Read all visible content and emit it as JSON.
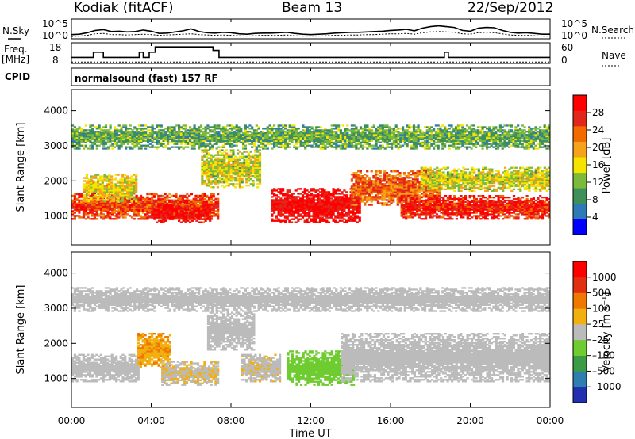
{
  "header": {
    "station": "Kodiak (fitACF)",
    "beam": "Beam 13",
    "date": "22/Sep/2012",
    "program": "normalsound (fast) 157 RF"
  },
  "side_labels": {
    "n_sky": "N.Sky",
    "freq": "Freq.",
    "freq_unit": "[MHz]",
    "cpid": "CPID",
    "n_search": "N.Search",
    "nave": "Nave"
  },
  "noise_panel": {
    "left_ticks": [
      "10^5",
      "10^0"
    ],
    "right_ticks": [
      "10^5",
      "10^0"
    ],
    "n_sky_log": [
      0.9,
      1.0,
      1.4,
      2.0,
      2.2,
      1.7,
      1.8,
      1.6,
      1.7,
      2.1,
      1.8,
      1.2,
      1.3,
      1.6,
      1.9,
      2.4,
      1.7,
      1.4,
      1.3,
      1.5,
      1.4,
      1.1,
      1.0,
      1.2,
      1.3,
      1.3,
      1.4,
      1.5,
      1.2,
      1.0,
      0.9,
      1.0,
      1.1,
      1.3,
      1.4,
      1.5,
      1.5,
      1.6,
      1.7,
      1.8,
      2.0,
      2.1,
      2.3,
      1.9,
      2.6,
      3.0,
      3.2,
      3.0,
      2.8,
      2.0,
      1.8,
      2.6,
      2.8,
      2.7,
      2.0,
      1.5,
      1.3,
      1.4,
      1.2,
      1.0,
      1.0
    ],
    "n_search_log": [
      0.4,
      0.5,
      0.7,
      1.1,
      1.2,
      0.9,
      0.9,
      0.8,
      0.9,
      1.0,
      0.9,
      0.7,
      0.8,
      0.9,
      1.0,
      1.1,
      0.9,
      0.8,
      0.7,
      0.8,
      0.7,
      0.6,
      0.5,
      0.6,
      0.7,
      0.7,
      0.7,
      0.8,
      0.6,
      0.5,
      0.5,
      0.5,
      0.6,
      0.7,
      0.7,
      0.8,
      0.8,
      0.9,
      0.9,
      1.0,
      1.1,
      1.1,
      1.2,
      1.0,
      1.4,
      1.6,
      1.7,
      1.6,
      1.5,
      1.1,
      1.0,
      1.4,
      1.5,
      1.4,
      1.1,
      0.8,
      0.7,
      0.7,
      0.6,
      0.5,
      0.5
    ]
  },
  "freq_panel": {
    "left_ticks": [
      "18",
      "8"
    ],
    "right_ticks": [
      "60",
      "0"
    ],
    "freq_steps": [
      {
        "t": 0.0,
        "f": 11
      },
      {
        "t": 0.9,
        "f": 11
      },
      {
        "t": 1.1,
        "f": 14
      },
      {
        "t": 1.6,
        "f": 11
      },
      {
        "t": 3.4,
        "f": 14
      },
      {
        "t": 3.6,
        "f": 11
      },
      {
        "t": 3.9,
        "f": 14
      },
      {
        "t": 4.2,
        "f": 17
      },
      {
        "t": 7.1,
        "f": 15
      },
      {
        "t": 7.4,
        "f": 11
      },
      {
        "t": 18.7,
        "f": 14
      },
      {
        "t": 18.9,
        "f": 11
      },
      {
        "t": 15.9,
        "f": 11
      },
      {
        "t": 24.0,
        "f": 11
      }
    ],
    "nave": 2
  },
  "range_time": {
    "x_ticks": [
      "00:00",
      "04:00",
      "08:00",
      "12:00",
      "16:00",
      "20:00",
      "00:00"
    ],
    "x_label": "Time UT",
    "y_label": "Slant Range [km]",
    "y_ticks": [
      "1000",
      "2000",
      "3000",
      "4000"
    ],
    "x_range_hours": [
      0,
      24
    ],
    "y_range_km": [
      180,
      4600
    ]
  },
  "power_scale": {
    "label": "Power [dB]",
    "ticks": [
      "4",
      "8",
      "12",
      "16",
      "20",
      "24",
      "28"
    ],
    "colors": [
      "#0000ff",
      "#2c7bb6",
      "#3f8f5a",
      "#7cba3b",
      "#f5e400",
      "#f5a21c",
      "#f26b00",
      "#e3261b",
      "#ff0000"
    ]
  },
  "velocity_scale": {
    "label": "Velocity [m s⁻¹]",
    "ticks": [
      "1000",
      "500",
      "100",
      "25",
      "–25",
      "–100",
      "–500",
      "–1000"
    ],
    "colors": [
      "#2030b0",
      "#2e7fb0",
      "#3c9b45",
      "#6fcc30",
      "#bbbbbb",
      "#f2b010",
      "#f07800",
      "#e03010",
      "#ff0000"
    ]
  },
  "chart_data": [
    {
      "type": "heatmap",
      "title": "Power",
      "xlabel": "Time UT",
      "ylabel": "Slant Range [km]",
      "xlim": [
        0,
        24
      ],
      "ylim": [
        180,
        4600
      ],
      "units": "dB",
      "value_range": [
        0,
        30
      ],
      "regions": [
        {
          "t0": 0.0,
          "t1": 7.4,
          "r0": 900,
          "r1": 1650,
          "value": 24
        },
        {
          "t0": 0.6,
          "t1": 3.3,
          "r0": 1400,
          "r1": 2200,
          "value": 16
        },
        {
          "t0": 4.0,
          "t1": 7.0,
          "r0": 800,
          "r1": 1300,
          "value": 27
        },
        {
          "t0": 6.5,
          "t1": 9.5,
          "r0": 1800,
          "r1": 2900,
          "value": 14
        },
        {
          "t0": 10.0,
          "t1": 14.5,
          "r0": 800,
          "r1": 1800,
          "value": 28
        },
        {
          "t0": 14.0,
          "t1": 18.5,
          "r0": 1300,
          "r1": 2300,
          "value": 22
        },
        {
          "t0": 16.5,
          "t1": 24.0,
          "r0": 900,
          "r1": 1600,
          "value": 26
        },
        {
          "t0": 17.5,
          "t1": 24.0,
          "r0": 1700,
          "r1": 2400,
          "value": 14
        },
        {
          "t0": 0.0,
          "t1": 24.0,
          "r0": 2900,
          "r1": 3600,
          "value": 10
        }
      ]
    },
    {
      "type": "heatmap",
      "title": "Velocity",
      "xlabel": "Time UT",
      "ylabel": "Slant Range [km]",
      "xlim": [
        0,
        24
      ],
      "ylim": [
        180,
        4600
      ],
      "units": "m s-1",
      "value_range": [
        -1000,
        1000
      ],
      "regions": [
        {
          "t0": 0.0,
          "t1": 3.4,
          "r0": 900,
          "r1": 1700,
          "value": 0
        },
        {
          "t0": 3.3,
          "t1": 5.0,
          "r0": 1300,
          "r1": 2300,
          "value": 300
        },
        {
          "t0": 4.5,
          "t1": 7.4,
          "r0": 800,
          "r1": 1500,
          "value": 80
        },
        {
          "t0": 6.8,
          "t1": 9.2,
          "r0": 1800,
          "r1": 2900,
          "value": 0
        },
        {
          "t0": 8.5,
          "t1": 10.5,
          "r0": 900,
          "r1": 1700,
          "value": 60
        },
        {
          "t0": 10.8,
          "t1": 14.2,
          "r0": 800,
          "r1": 1800,
          "value": -250
        },
        {
          "t0": 13.5,
          "t1": 24.0,
          "r0": 900,
          "r1": 2300,
          "value": 0
        },
        {
          "t0": 0.0,
          "t1": 24.0,
          "r0": 2900,
          "r1": 3600,
          "value": 0
        }
      ]
    }
  ]
}
